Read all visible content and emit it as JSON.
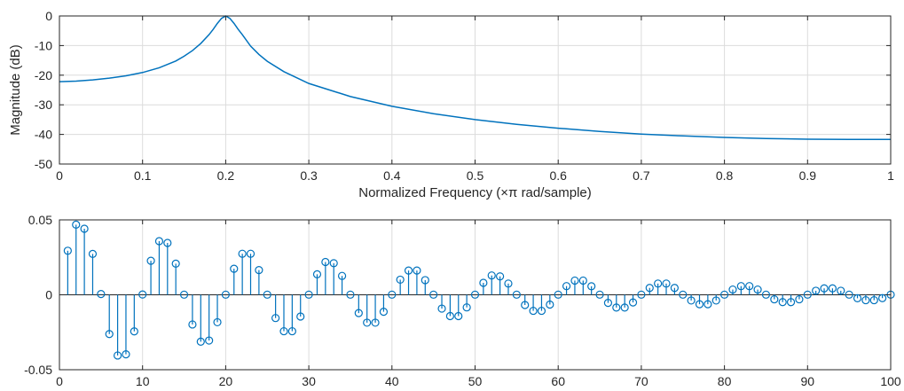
{
  "chart_data": [
    {
      "type": "line",
      "xlabel": "Normalized Frequency  (×π rad/sample)",
      "ylabel": "Magnitude (dB)",
      "xlim": [
        0,
        1
      ],
      "ylim": [
        -50,
        0
      ],
      "grid": true,
      "x_ticks": [
        "0",
        "0.1",
        "0.2",
        "0.3",
        "0.4",
        "0.5",
        "0.6",
        "0.7",
        "0.8",
        "0.9",
        "1"
      ],
      "y_ticks": [
        "0",
        "-10",
        "-20",
        "-30",
        "-40",
        "-50"
      ],
      "series": [
        {
          "color": "#0072bd",
          "x": [
            0,
            0.02,
            0.04,
            0.06,
            0.08,
            0.1,
            0.12,
            0.14,
            0.15,
            0.16,
            0.17,
            0.18,
            0.185,
            0.19,
            0.195,
            0.2,
            0.205,
            0.21,
            0.215,
            0.22,
            0.23,
            0.24,
            0.25,
            0.27,
            0.3,
            0.35,
            0.4,
            0.45,
            0.5,
            0.55,
            0.6,
            0.65,
            0.7,
            0.75,
            0.8,
            0.85,
            0.9,
            0.95,
            1.0
          ],
          "y": [
            -22.2,
            -22.0,
            -21.6,
            -21.0,
            -20.2,
            -19.1,
            -17.5,
            -15.2,
            -13.6,
            -11.7,
            -9.3,
            -6.3,
            -4.5,
            -2.5,
            -0.8,
            0,
            -0.8,
            -2.5,
            -4.5,
            -6.3,
            -10.2,
            -13.0,
            -15.3,
            -18.8,
            -22.8,
            -27.2,
            -30.5,
            -33.0,
            -35.0,
            -36.6,
            -37.9,
            -39.0,
            -39.9,
            -40.5,
            -41.0,
            -41.4,
            -41.6,
            -41.7,
            -41.7
          ]
        }
      ]
    },
    {
      "type": "stem",
      "xlim": [
        0,
        100
      ],
      "ylim": [
        -0.05,
        0.05
      ],
      "grid": true,
      "x_ticks": [
        "0",
        "10",
        "20",
        "30",
        "40",
        "50",
        "60",
        "70",
        "80",
        "90",
        "100"
      ],
      "y_ticks": [
        "0.05",
        "0",
        "-0.05"
      ],
      "series": [
        {
          "color": "#0072bd",
          "x": [
            1,
            2,
            3,
            4,
            5,
            6,
            7,
            8,
            9,
            10,
            11,
            12,
            13,
            14,
            15,
            16,
            17,
            18,
            19,
            20,
            21,
            22,
            23,
            24,
            25,
            26,
            27,
            28,
            29,
            30,
            31,
            32,
            33,
            34,
            35,
            36,
            37,
            38,
            39,
            40,
            41,
            42,
            43,
            44,
            45,
            46,
            47,
            48,
            49,
            50,
            51,
            52,
            53,
            54,
            55,
            56,
            57,
            58,
            59,
            60,
            61,
            62,
            63,
            64,
            65,
            66,
            67,
            68,
            69,
            70,
            71,
            72,
            73,
            74,
            75,
            76,
            77,
            78,
            79,
            80,
            81,
            82,
            83,
            84,
            85,
            86,
            87,
            88,
            89,
            90,
            91,
            92,
            93,
            94,
            95,
            96,
            97,
            98,
            99,
            100
          ],
          "y": [
            0.0294,
            0.0468,
            0.0441,
            0.0273,
            0.0005,
            -0.0262,
            -0.0405,
            -0.0397,
            -0.0244,
            0.0002,
            0.0227,
            0.0358,
            0.0346,
            0.0208,
            0.0001,
            -0.0198,
            -0.0313,
            -0.0305,
            -0.0183,
            0.0001,
            0.0174,
            0.0274,
            0.0274,
            0.0165,
            0.0001,
            -0.0155,
            -0.0243,
            -0.0243,
            -0.0145,
            0.0001,
            0.0137,
            0.0219,
            0.0211,
            0.0126,
            0.0001,
            -0.0122,
            -0.0186,
            -0.0186,
            -0.0113,
            0.0001,
            0.0101,
            0.0162,
            0.0162,
            0.0098,
            0.0001,
            -0.0092,
            -0.0142,
            -0.0142,
            -0.0084,
            0.0001,
            0.008,
            0.0129,
            0.0123,
            0.0075,
            0.0001,
            -0.0068,
            -0.0107,
            -0.0107,
            -0.0065,
            0.0001,
            0.0058,
            0.0095,
            0.0095,
            0.0057,
            0.0001,
            -0.0054,
            -0.0085,
            -0.0085,
            -0.0051,
            0.0001,
            0.0046,
            0.0075,
            0.0075,
            0.0046,
            0.0001,
            -0.0038,
            -0.0063,
            -0.0063,
            -0.0038,
            0.0001,
            0.0035,
            0.0058,
            0.0058,
            0.0035,
            0.0001,
            -0.003,
            -0.0049,
            -0.0049,
            -0.003,
            0.0001,
            0.0027,
            0.0043,
            0.0043,
            0.0027,
            0.0001,
            -0.0023,
            -0.0036,
            -0.0036,
            -0.0022,
            0.0001
          ]
        }
      ]
    }
  ]
}
